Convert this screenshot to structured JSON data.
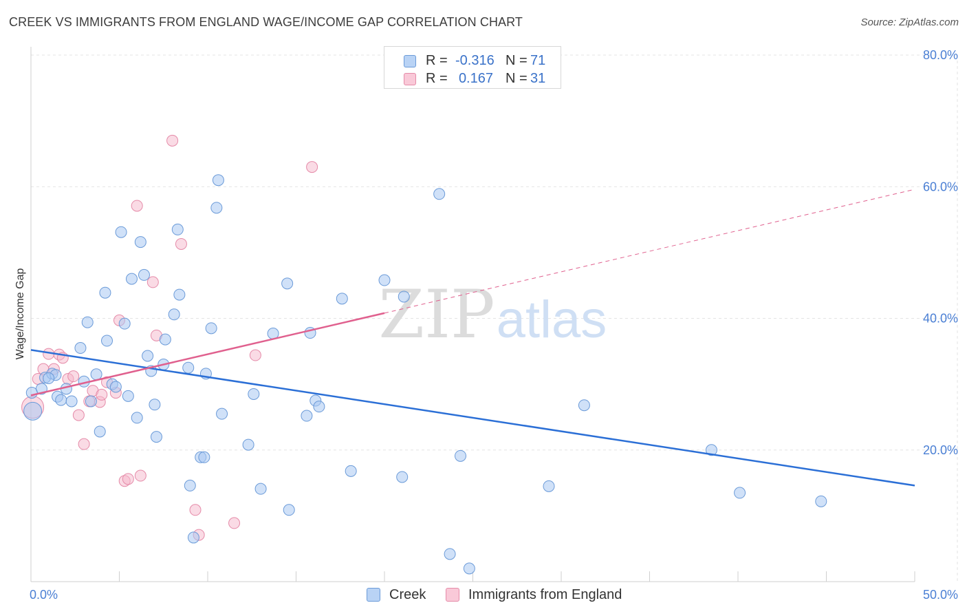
{
  "title": "CREEK VS IMMIGRANTS FROM ENGLAND WAGE/INCOME GAP CORRELATION CHART",
  "source": "Source: ZipAtlas.com",
  "legend": {
    "rows": [
      {
        "r_label": "R =",
        "r_value": "-0.316",
        "n_label": "N =",
        "n_value": "71"
      },
      {
        "r_label": "R =",
        "r_value": "0.167",
        "n_label": "N =",
        "n_value": "31"
      }
    ]
  },
  "bottom_legend": {
    "creek": "Creek",
    "england": "Immigrants from England"
  },
  "watermark": {
    "zip": "ZIP",
    "atlas": "atlas"
  },
  "colors": {
    "creek_fill": "#a9c8f2",
    "creek_stroke": "#6a9ad8",
    "creek_line": "#2b6fd6",
    "england_fill": "#f6b8cb",
    "england_stroke": "#e58aa8",
    "england_line": "#e0608e"
  },
  "chart_data": {
    "type": "scatter",
    "title": "CREEK VS IMMIGRANTS FROM ENGLAND WAGE/INCOME GAP CORRELATION CHART",
    "xlabel": "",
    "ylabel": "Wage/Income Gap",
    "xlim": [
      0,
      50
    ],
    "ylim": [
      0,
      80
    ],
    "x_tick_labels": [
      "0.0%",
      "50.0%"
    ],
    "y_ticks": [
      20,
      40,
      60,
      80
    ],
    "y_tick_labels": [
      "20.0%",
      "40.0%",
      "60.0%",
      "80.0%"
    ],
    "grid": true,
    "series": [
      {
        "name": "Creek",
        "r": -0.316,
        "n": 71,
        "trend": {
          "x": [
            0,
            50
          ],
          "y": [
            35.2,
            14.6
          ]
        },
        "points": [
          [
            0.1,
            25.9
          ],
          [
            0.6,
            29.3
          ],
          [
            0.8,
            31.0
          ],
          [
            1.2,
            31.6
          ],
          [
            1.4,
            31.4
          ],
          [
            1.5,
            28.1
          ],
          [
            1.7,
            27.6
          ],
          [
            2.0,
            29.3
          ],
          [
            2.3,
            27.4
          ],
          [
            2.8,
            35.5
          ],
          [
            3.0,
            30.4
          ],
          [
            3.2,
            39.4
          ],
          [
            3.4,
            27.4
          ],
          [
            3.7,
            31.5
          ],
          [
            3.9,
            22.8
          ],
          [
            4.2,
            43.9
          ],
          [
            4.3,
            36.6
          ],
          [
            4.6,
            30.0
          ],
          [
            4.8,
            29.6
          ],
          [
            5.1,
            53.1
          ],
          [
            5.3,
            39.2
          ],
          [
            5.5,
            28.2
          ],
          [
            5.7,
            46.0
          ],
          [
            6.0,
            24.9
          ],
          [
            6.2,
            51.6
          ],
          [
            6.4,
            46.6
          ],
          [
            6.6,
            34.3
          ],
          [
            6.8,
            32.0
          ],
          [
            7.0,
            26.9
          ],
          [
            7.1,
            22.0
          ],
          [
            7.5,
            33.0
          ],
          [
            7.6,
            36.8
          ],
          [
            8.1,
            40.6
          ],
          [
            8.3,
            53.5
          ],
          [
            8.4,
            43.6
          ],
          [
            8.9,
            32.5
          ],
          [
            9.0,
            14.6
          ],
          [
            9.2,
            6.7
          ],
          [
            9.6,
            18.9
          ],
          [
            9.8,
            18.9
          ],
          [
            10.2,
            38.5
          ],
          [
            10.5,
            56.8
          ],
          [
            10.6,
            61.0
          ],
          [
            10.8,
            25.5
          ],
          [
            12.3,
            20.8
          ],
          [
            12.6,
            28.5
          ],
          [
            13.0,
            14.1
          ],
          [
            13.7,
            37.7
          ],
          [
            14.6,
            10.9
          ],
          [
            14.5,
            45.3
          ],
          [
            15.6,
            25.2
          ],
          [
            15.8,
            37.8
          ],
          [
            16.1,
            27.5
          ],
          [
            16.3,
            26.6
          ],
          [
            17.6,
            43.0
          ],
          [
            18.1,
            16.8
          ],
          [
            20.0,
            45.8
          ],
          [
            21.0,
            15.9
          ],
          [
            21.1,
            43.3
          ],
          [
            23.1,
            58.9
          ],
          [
            23.7,
            4.2
          ],
          [
            24.3,
            19.1
          ],
          [
            24.8,
            2.0
          ],
          [
            29.3,
            14.5
          ],
          [
            31.3,
            26.8
          ],
          [
            38.5,
            20.0
          ],
          [
            40.1,
            13.5
          ],
          [
            44.7,
            12.2
          ],
          [
            0.05,
            28.7
          ],
          [
            1.0,
            30.9
          ],
          [
            9.9,
            31.6
          ]
        ]
      },
      {
        "name": "Immigrants from England",
        "r": 0.167,
        "n": 31,
        "trend": {
          "x": [
            0,
            20
          ],
          "y": [
            28.3,
            40.8
          ]
        },
        "trend_extended": {
          "x": [
            20,
            50
          ],
          "y": [
            40.8,
            59.6
          ]
        },
        "points": [
          [
            0.1,
            26.5
          ],
          [
            0.4,
            30.8
          ],
          [
            0.7,
            32.3
          ],
          [
            1.0,
            34.6
          ],
          [
            1.3,
            32.3
          ],
          [
            1.6,
            34.5
          ],
          [
            1.8,
            34.0
          ],
          [
            2.1,
            30.8
          ],
          [
            2.4,
            31.2
          ],
          [
            2.7,
            25.3
          ],
          [
            3.0,
            20.9
          ],
          [
            3.3,
            27.4
          ],
          [
            3.5,
            29.0
          ],
          [
            3.9,
            27.3
          ],
          [
            4.0,
            28.4
          ],
          [
            4.3,
            30.3
          ],
          [
            4.8,
            28.7
          ],
          [
            5.0,
            39.7
          ],
          [
            5.3,
            15.3
          ],
          [
            5.5,
            15.6
          ],
          [
            6.0,
            57.1
          ],
          [
            6.2,
            16.1
          ],
          [
            6.9,
            45.5
          ],
          [
            7.1,
            37.4
          ],
          [
            8.0,
            67.0
          ],
          [
            8.5,
            51.3
          ],
          [
            9.3,
            10.9
          ],
          [
            9.5,
            7.1
          ],
          [
            11.5,
            8.9
          ],
          [
            12.7,
            34.4
          ],
          [
            15.9,
            63.0
          ]
        ]
      }
    ]
  }
}
